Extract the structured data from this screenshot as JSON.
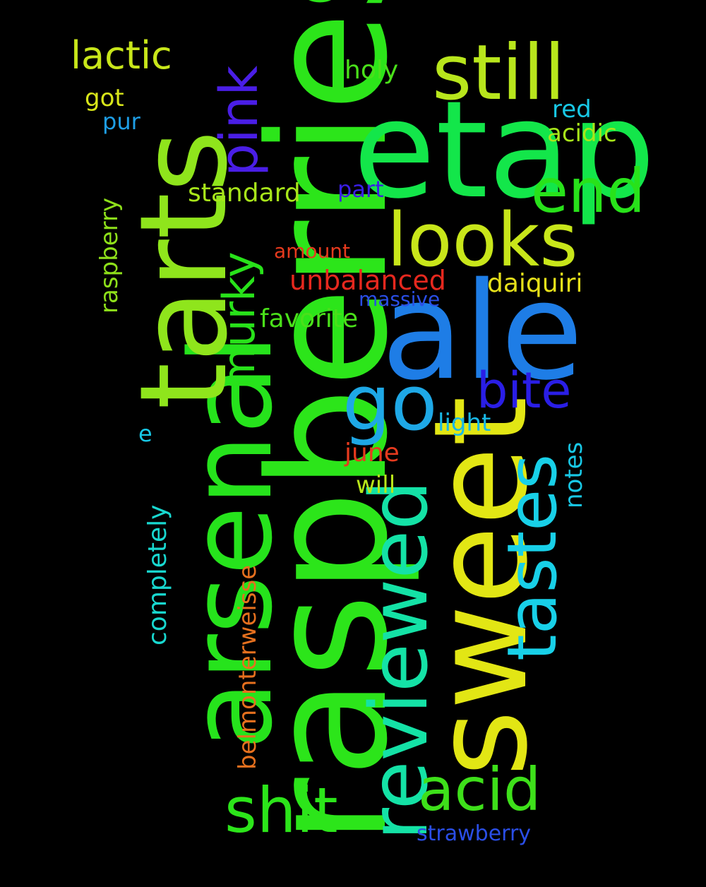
{
  "background": "#000000",
  "words": {
    "raspberries": {
      "text": "raspberries",
      "color": "#2ce51a"
    },
    "arsenal": {
      "text": "arsenal",
      "color": "#26e31c"
    },
    "tarts": {
      "text": "tarts",
      "color": "#8fe51c"
    },
    "etap": {
      "text": "etap",
      "color": "#13e64a"
    },
    "ale": {
      "text": "ale",
      "color": "#1e7de6"
    },
    "sweet": {
      "text": "sweet",
      "color": "#e2e614"
    },
    "reviewed": {
      "text": "reviewed",
      "color": "#14e2a6"
    },
    "tastes": {
      "text": "tastes",
      "color": "#18d0e8"
    },
    "still": {
      "text": "still",
      "color": "#b8e61c"
    },
    "looks": {
      "text": "looks",
      "color": "#c8e61a"
    },
    "end": {
      "text": "end",
      "color": "#28e21a"
    },
    "pink": {
      "text": "pink",
      "color": "#4a1ee6"
    },
    "murky": {
      "text": "murky",
      "color": "#28e21a"
    },
    "go": {
      "text": "go",
      "color": "#1ea8e6"
    },
    "bite": {
      "text": "bite",
      "color": "#2a1ee6"
    },
    "shit": {
      "text": "shit",
      "color": "#2ce51a"
    },
    "acid": {
      "text": "acid",
      "color": "#3ee01a"
    },
    "lactic": {
      "text": "lactic",
      "color": "#c8e61a"
    },
    "holy": {
      "text": "holy",
      "color": "#4ae01a"
    },
    "got": {
      "text": "got",
      "color": "#d8e61a"
    },
    "pur": {
      "text": "pur",
      "color": "#1e9ee6"
    },
    "red": {
      "text": "red",
      "color": "#18c8e6"
    },
    "acidic": {
      "text": "acidic",
      "color": "#a8e61a"
    },
    "standard": {
      "text": "standard",
      "color": "#a8e61a"
    },
    "part": {
      "text": "part",
      "color": "#3a1ee6"
    },
    "amount": {
      "text": "amount",
      "color": "#e63a1e"
    },
    "unbalanced": {
      "text": "unbalanced",
      "color": "#e6281e"
    },
    "daiquiri": {
      "text": "daiquiri",
      "color": "#e6e01a"
    },
    "massive": {
      "text": "massive",
      "color": "#2a4ee6"
    },
    "favorite": {
      "text": "favorite",
      "color": "#4ae01a"
    },
    "light": {
      "text": "light",
      "color": "#18b8e6"
    },
    "e": {
      "text": "e",
      "color": "#18c8e6"
    },
    "june": {
      "text": "june",
      "color": "#e63a1e"
    },
    "will": {
      "text": "will",
      "color": "#b8e61a"
    },
    "raspberry": {
      "text": "raspberry",
      "color": "#8ee01a"
    },
    "completely": {
      "text": "completely",
      "color": "#18d8d0"
    },
    "belmonterweisse": {
      "text": "belmonterweisse",
      "color": "#e6701e"
    },
    "notes": {
      "text": "notes",
      "color": "#18c8e6"
    },
    "strawberry": {
      "text": "strawberry",
      "color": "#2a4ee6"
    }
  }
}
